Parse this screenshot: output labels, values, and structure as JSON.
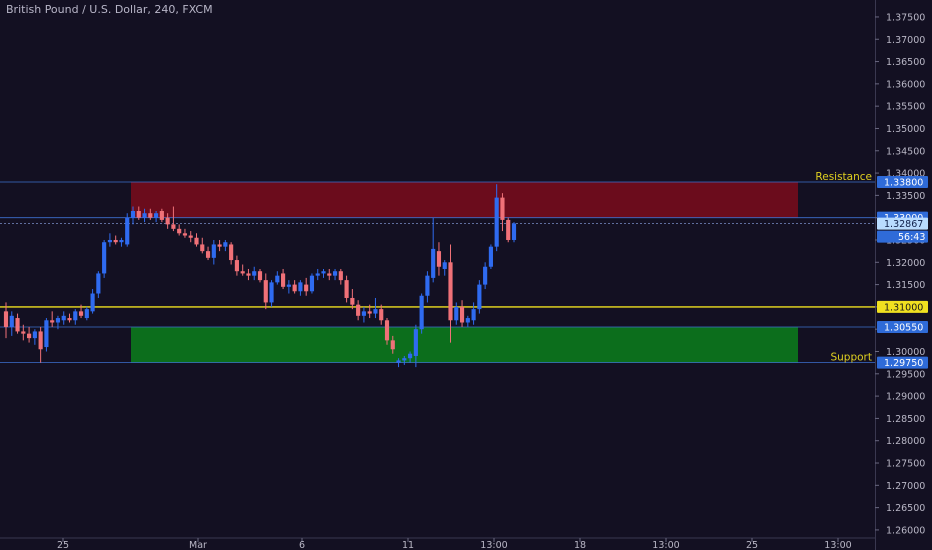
{
  "header": {
    "title": "British Pound / U.S. Dollar, 240, FXCM"
  },
  "colors": {
    "background": "#131022",
    "axis_background": "#131022",
    "up": "#2f6bf0",
    "down": "#f07178",
    "resistance_fill": "#6b0c1c",
    "support_fill": "#0c6e1c",
    "level_line": "#f0e020",
    "zone_edge": "#3d6fcf",
    "label_text": "#e0d020",
    "badge": "#2f6bd8",
    "badge_current": "#b9dcff"
  },
  "chart_data": {
    "type": "candlestick",
    "title": "British Pound / U.S. Dollar, 240, FXCM",
    "ylim": [
      1.2555,
      1.3788
    ],
    "y_ticks": [
      "1.37500",
      "1.37000",
      "1.36500",
      "1.36000",
      "1.35500",
      "1.35000",
      "1.34500",
      "1.34000",
      "1.33500",
      "1.33000",
      "1.32500",
      "1.32000",
      "1.31500",
      "1.31000",
      "1.30500",
      "1.30000",
      "1.29500",
      "1.29000",
      "1.28500",
      "1.28000",
      "1.27500",
      "1.27000",
      "1.26500",
      "1.26000"
    ],
    "x_labels": [
      "25",
      "Mar",
      "6",
      "11",
      "13:00",
      "18",
      "13:00",
      "25",
      "13:00"
    ],
    "grid": false,
    "candles": [
      {
        "o": 1.309,
        "h": 1.311,
        "l": 1.303,
        "c": 1.3055
      },
      {
        "o": 1.3055,
        "h": 1.309,
        "l": 1.3035,
        "c": 1.308
      },
      {
        "o": 1.3075,
        "h": 1.3085,
        "l": 1.304,
        "c": 1.3045
      },
      {
        "o": 1.3045,
        "h": 1.306,
        "l": 1.3025,
        "c": 1.304
      },
      {
        "o": 1.304,
        "h": 1.3055,
        "l": 1.302,
        "c": 1.303
      },
      {
        "o": 1.303,
        "h": 1.305,
        "l": 1.3015,
        "c": 1.3045
      },
      {
        "o": 1.3045,
        "h": 1.3055,
        "l": 1.2975,
        "c": 1.3005
      },
      {
        "o": 1.301,
        "h": 1.3075,
        "l": 1.3,
        "c": 1.307
      },
      {
        "o": 1.307,
        "h": 1.309,
        "l": 1.3055,
        "c": 1.3065
      },
      {
        "o": 1.3065,
        "h": 1.308,
        "l": 1.305,
        "c": 1.3075
      },
      {
        "o": 1.307,
        "h": 1.309,
        "l": 1.306,
        "c": 1.308
      },
      {
        "o": 1.3075,
        "h": 1.3085,
        "l": 1.3065,
        "c": 1.307
      },
      {
        "o": 1.307,
        "h": 1.3095,
        "l": 1.306,
        "c": 1.309
      },
      {
        "o": 1.309,
        "h": 1.3105,
        "l": 1.3075,
        "c": 1.308
      },
      {
        "o": 1.3075,
        "h": 1.31,
        "l": 1.307,
        "c": 1.3095
      },
      {
        "o": 1.309,
        "h": 1.314,
        "l": 1.3085,
        "c": 1.313
      },
      {
        "o": 1.313,
        "h": 1.318,
        "l": 1.312,
        "c": 1.3175
      },
      {
        "o": 1.3175,
        "h": 1.325,
        "l": 1.3165,
        "c": 1.3245
      },
      {
        "o": 1.3245,
        "h": 1.3265,
        "l": 1.3235,
        "c": 1.325
      },
      {
        "o": 1.325,
        "h": 1.326,
        "l": 1.324,
        "c": 1.3245
      },
      {
        "o": 1.3245,
        "h": 1.3255,
        "l": 1.3235,
        "c": 1.325
      },
      {
        "o": 1.324,
        "h": 1.331,
        "l": 1.3235,
        "c": 1.33
      },
      {
        "o": 1.33,
        "h": 1.3325,
        "l": 1.3285,
        "c": 1.3315
      },
      {
        "o": 1.3315,
        "h": 1.3325,
        "l": 1.3295,
        "c": 1.33
      },
      {
        "o": 1.33,
        "h": 1.332,
        "l": 1.329,
        "c": 1.331
      },
      {
        "o": 1.331,
        "h": 1.332,
        "l": 1.3295,
        "c": 1.33
      },
      {
        "o": 1.33,
        "h": 1.3315,
        "l": 1.329,
        "c": 1.331
      },
      {
        "o": 1.3315,
        "h": 1.332,
        "l": 1.329,
        "c": 1.3295
      },
      {
        "o": 1.33,
        "h": 1.331,
        "l": 1.3275,
        "c": 1.3285
      },
      {
        "o": 1.3285,
        "h": 1.3325,
        "l": 1.327,
        "c": 1.3275
      },
      {
        "o": 1.3275,
        "h": 1.3285,
        "l": 1.326,
        "c": 1.3265
      },
      {
        "o": 1.3265,
        "h": 1.3275,
        "l": 1.3255,
        "c": 1.326
      },
      {
        "o": 1.326,
        "h": 1.327,
        "l": 1.3245,
        "c": 1.3255
      },
      {
        "o": 1.3255,
        "h": 1.3265,
        "l": 1.3235,
        "c": 1.324
      },
      {
        "o": 1.324,
        "h": 1.3255,
        "l": 1.322,
        "c": 1.3225
      },
      {
        "o": 1.3225,
        "h": 1.3235,
        "l": 1.3205,
        "c": 1.321
      },
      {
        "o": 1.321,
        "h": 1.325,
        "l": 1.3195,
        "c": 1.324
      },
      {
        "o": 1.324,
        "h": 1.325,
        "l": 1.3225,
        "c": 1.3235
      },
      {
        "o": 1.3235,
        "h": 1.325,
        "l": 1.3225,
        "c": 1.3245
      },
      {
        "o": 1.324,
        "h": 1.3245,
        "l": 1.3195,
        "c": 1.3205
      },
      {
        "o": 1.3205,
        "h": 1.3215,
        "l": 1.317,
        "c": 1.318
      },
      {
        "o": 1.318,
        "h": 1.3195,
        "l": 1.317,
        "c": 1.3175
      },
      {
        "o": 1.3175,
        "h": 1.3185,
        "l": 1.316,
        "c": 1.317
      },
      {
        "o": 1.317,
        "h": 1.319,
        "l": 1.316,
        "c": 1.318
      },
      {
        "o": 1.318,
        "h": 1.3185,
        "l": 1.3155,
        "c": 1.316
      },
      {
        "o": 1.316,
        "h": 1.3175,
        "l": 1.3095,
        "c": 1.311
      },
      {
        "o": 1.311,
        "h": 1.316,
        "l": 1.31,
        "c": 1.3155
      },
      {
        "o": 1.3155,
        "h": 1.318,
        "l": 1.315,
        "c": 1.317
      },
      {
        "o": 1.3175,
        "h": 1.3185,
        "l": 1.314,
        "c": 1.3145
      },
      {
        "o": 1.3145,
        "h": 1.316,
        "l": 1.313,
        "c": 1.315
      },
      {
        "o": 1.315,
        "h": 1.316,
        "l": 1.313,
        "c": 1.3135
      },
      {
        "o": 1.3135,
        "h": 1.316,
        "l": 1.3125,
        "c": 1.3155
      },
      {
        "o": 1.315,
        "h": 1.3165,
        "l": 1.3125,
        "c": 1.3135
      },
      {
        "o": 1.3135,
        "h": 1.3175,
        "l": 1.313,
        "c": 1.317
      },
      {
        "o": 1.317,
        "h": 1.3185,
        "l": 1.316,
        "c": 1.3175
      },
      {
        "o": 1.3175,
        "h": 1.3185,
        "l": 1.3165,
        "c": 1.318
      },
      {
        "o": 1.3175,
        "h": 1.3185,
        "l": 1.316,
        "c": 1.317
      },
      {
        "o": 1.317,
        "h": 1.3185,
        "l": 1.316,
        "c": 1.318
      },
      {
        "o": 1.318,
        "h": 1.3185,
        "l": 1.315,
        "c": 1.316
      },
      {
        "o": 1.316,
        "h": 1.317,
        "l": 1.311,
        "c": 1.312
      },
      {
        "o": 1.312,
        "h": 1.314,
        "l": 1.3095,
        "c": 1.3105
      },
      {
        "o": 1.3105,
        "h": 1.3115,
        "l": 1.307,
        "c": 1.308
      },
      {
        "o": 1.308,
        "h": 1.31,
        "l": 1.3065,
        "c": 1.309
      },
      {
        "o": 1.309,
        "h": 1.3105,
        "l": 1.3075,
        "c": 1.3085
      },
      {
        "o": 1.3085,
        "h": 1.312,
        "l": 1.3075,
        "c": 1.3095
      },
      {
        "o": 1.3095,
        "h": 1.3105,
        "l": 1.306,
        "c": 1.307
      },
      {
        "o": 1.307,
        "h": 1.3075,
        "l": 1.3015,
        "c": 1.3025
      },
      {
        "o": 1.3025,
        "h": 1.3035,
        "l": 1.2995,
        "c": 1.3005
      },
      {
        "o": 1.2975,
        "h": 1.2985,
        "l": 1.2965,
        "c": 1.298
      },
      {
        "o": 1.298,
        "h": 1.299,
        "l": 1.297,
        "c": 1.2985
      },
      {
        "o": 1.2985,
        "h": 1.3,
        "l": 1.2975,
        "c": 1.2995
      },
      {
        "o": 1.299,
        "h": 1.306,
        "l": 1.2965,
        "c": 1.305
      },
      {
        "o": 1.305,
        "h": 1.313,
        "l": 1.304,
        "c": 1.3125
      },
      {
        "o": 1.3125,
        "h": 1.318,
        "l": 1.311,
        "c": 1.317
      },
      {
        "o": 1.3165,
        "h": 1.33,
        "l": 1.3155,
        "c": 1.323
      },
      {
        "o": 1.3225,
        "h": 1.3245,
        "l": 1.317,
        "c": 1.319
      },
      {
        "o": 1.3185,
        "h": 1.3205,
        "l": 1.317,
        "c": 1.32
      },
      {
        "o": 1.32,
        "h": 1.324,
        "l": 1.302,
        "c": 1.307
      },
      {
        "o": 1.307,
        "h": 1.311,
        "l": 1.306,
        "c": 1.31
      },
      {
        "o": 1.31,
        "h": 1.3115,
        "l": 1.3055,
        "c": 1.3065
      },
      {
        "o": 1.3065,
        "h": 1.308,
        "l": 1.3055,
        "c": 1.3075
      },
      {
        "o": 1.307,
        "h": 1.311,
        "l": 1.306,
        "c": 1.3095
      },
      {
        "o": 1.3095,
        "h": 1.316,
        "l": 1.3085,
        "c": 1.315
      },
      {
        "o": 1.315,
        "h": 1.32,
        "l": 1.314,
        "c": 1.319
      },
      {
        "o": 1.319,
        "h": 1.324,
        "l": 1.3185,
        "c": 1.3235
      },
      {
        "o": 1.3235,
        "h": 1.3375,
        "l": 1.3225,
        "c": 1.3345
      },
      {
        "o": 1.3345,
        "h": 1.3355,
        "l": 1.327,
        "c": 1.3295
      },
      {
        "o": 1.3295,
        "h": 1.33,
        "l": 1.3245,
        "c": 1.325
      },
      {
        "o": 1.325,
        "h": 1.329,
        "l": 1.3245,
        "c": 1.3287
      }
    ],
    "zones": [
      {
        "name": "Resistance",
        "top": 1.338,
        "bottom": 1.33,
        "color": "#6b0c1c",
        "label": "Resistance"
      },
      {
        "name": "Support",
        "top": 1.3055,
        "bottom": 1.2975,
        "color": "#0c6e1c",
        "label": "Support"
      }
    ],
    "levels": [
      {
        "price": 1.31,
        "color": "#f0e020",
        "label": "1.31000"
      },
      {
        "price": 1.33,
        "color": "#3d6fcf",
        "label": "1.33000"
      },
      {
        "price": 1.3055,
        "color": "#3d6fcf",
        "label": "1.30550"
      },
      {
        "price": 1.338,
        "color": "#3d6fcf",
        "label": "1.33800"
      },
      {
        "price": 1.2975,
        "color": "#3d6fcf",
        "label": "1.29750"
      }
    ],
    "current": {
      "price": 1.32867,
      "label": "1.32867",
      "countdown": "56:43"
    },
    "annotations": [
      "Resistance",
      "Support"
    ]
  }
}
